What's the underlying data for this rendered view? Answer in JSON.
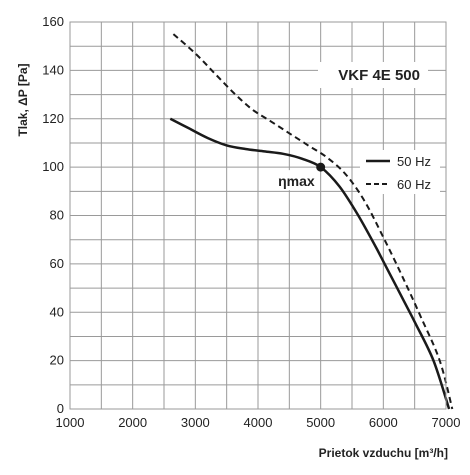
{
  "chart_data": {
    "type": "line",
    "title": "VKF 4E 500",
    "xlabel": "Prietok vzduchu",
    "xlabel_unit": "[m³/h]",
    "ylabel": "Tlak, ΔP [Pa]",
    "xlim": [
      1000,
      7000
    ],
    "ylim": [
      0,
      160
    ],
    "x_ticks": [
      1000,
      2000,
      3000,
      4000,
      5000,
      6000,
      7000
    ],
    "y_ticks": [
      0,
      20,
      40,
      60,
      80,
      100,
      120,
      140,
      160
    ],
    "x_grid_step": 500,
    "y_grid_step": 10,
    "grid": true,
    "legend_position": "right",
    "series": [
      {
        "name": "50 Hz",
        "style": "solid",
        "color": "#1a1a1a",
        "points": [
          [
            2600,
            120
          ],
          [
            2900,
            116
          ],
          [
            3200,
            112
          ],
          [
            3500,
            109
          ],
          [
            3800,
            107.5
          ],
          [
            4100,
            106.5
          ],
          [
            4400,
            105.5
          ],
          [
            4700,
            103.5
          ],
          [
            5000,
            100
          ],
          [
            5300,
            92
          ],
          [
            5600,
            80
          ],
          [
            5900,
            66
          ],
          [
            6200,
            51
          ],
          [
            6500,
            36
          ],
          [
            6800,
            20
          ],
          [
            7050,
            0
          ]
        ]
      },
      {
        "name": "60 Hz",
        "style": "dashed",
        "color": "#1a1a1a",
        "points": [
          [
            2650,
            155
          ],
          [
            3000,
            147
          ],
          [
            3300,
            139
          ],
          [
            3600,
            131
          ],
          [
            3900,
            124
          ],
          [
            4200,
            119
          ],
          [
            4500,
            114
          ],
          [
            4800,
            109
          ],
          [
            5100,
            104
          ],
          [
            5400,
            97
          ],
          [
            5700,
            86
          ],
          [
            6000,
            71
          ],
          [
            6300,
            55
          ],
          [
            6600,
            38
          ],
          [
            6900,
            20
          ],
          [
            7100,
            0
          ]
        ]
      }
    ],
    "annotations": [
      {
        "text": "ηmax",
        "x": 5000,
        "y": 100,
        "marker": "dot"
      }
    ]
  }
}
